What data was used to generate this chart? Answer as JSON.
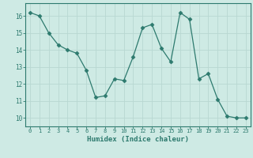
{
  "x": [
    0,
    1,
    2,
    3,
    4,
    5,
    6,
    7,
    8,
    9,
    10,
    11,
    12,
    13,
    14,
    15,
    16,
    17,
    18,
    19,
    20,
    21,
    22,
    23
  ],
  "y": [
    16.2,
    16.0,
    15.0,
    14.3,
    14.0,
    13.8,
    12.8,
    11.2,
    11.3,
    12.3,
    12.2,
    13.6,
    15.3,
    15.5,
    14.1,
    13.3,
    16.2,
    15.8,
    12.3,
    12.6,
    11.1,
    10.1,
    10.0,
    10.0
  ],
  "xlabel": "Humidex (Indice chaleur)",
  "xlim": [
    -0.5,
    23.5
  ],
  "ylim": [
    9.5,
    16.75
  ],
  "yticks": [
    10,
    11,
    12,
    13,
    14,
    15,
    16
  ],
  "xticks": [
    0,
    1,
    2,
    3,
    4,
    5,
    6,
    7,
    8,
    9,
    10,
    11,
    12,
    13,
    14,
    15,
    16,
    17,
    18,
    19,
    20,
    21,
    22,
    23
  ],
  "line_color": "#2d7a6e",
  "marker_color": "#2d7a6e",
  "bg_color": "#ceeae4",
  "grid_color": "#b8d8d2",
  "axes_color": "#2d7a6e",
  "tick_color": "#2d7a6e",
  "label_color": "#2d7a6e"
}
